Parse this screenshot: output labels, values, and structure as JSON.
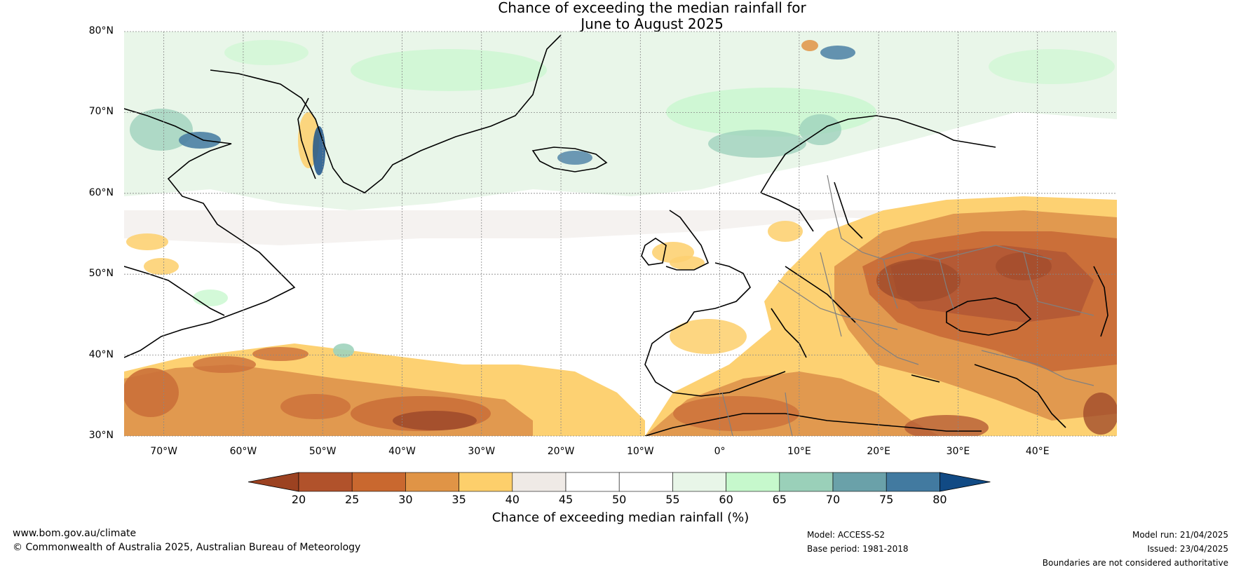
{
  "title": {
    "line1": "Chance of exceeding the median rainfall for",
    "line2": "June to August 2025"
  },
  "map": {
    "region": "North Atlantic and Europe",
    "lat_range": [
      30,
      80
    ],
    "lon_range": [
      -75,
      50
    ],
    "lat_labels": [
      "80°N",
      "70°N",
      "60°N",
      "50°N",
      "40°N",
      "30°N"
    ],
    "lon_labels": [
      "70°W",
      "60°W",
      "50°W",
      "40°W",
      "30°W",
      "20°W",
      "10°W",
      "0°",
      "10°E",
      "20°E",
      "30°E",
      "40°E"
    ],
    "gridlines": true
  },
  "colorbar": {
    "label": "Chance of exceeding median rainfall (%)",
    "ticks": [
      "20",
      "25",
      "30",
      "35",
      "40",
      "45",
      "50",
      "55",
      "60",
      "65",
      "70",
      "75",
      "80"
    ],
    "colors": [
      "#9c4221",
      "#b1522b",
      "#c9682f",
      "#e09446",
      "#fdcf6b",
      "#efeae6",
      "#ffffff",
      "#ffffff",
      "#e8f6e8",
      "#c6f8cc",
      "#9ad0b9",
      "#6aa1a9",
      "#427aa0",
      "#114a84"
    ],
    "extend": "both"
  },
  "footer": {
    "website": "www.bom.gov.au/climate",
    "copyright": "© Commonwealth of Australia 2025, Australian Bureau of Meteorology",
    "model": "Model: ACCESS-S2",
    "base_period": "Base period: 1981-2018",
    "model_run": "Model run: 21/04/2025",
    "issued": "Issued: 23/04/2025",
    "disclaimer": "Boundaries are not considered authoritative"
  }
}
